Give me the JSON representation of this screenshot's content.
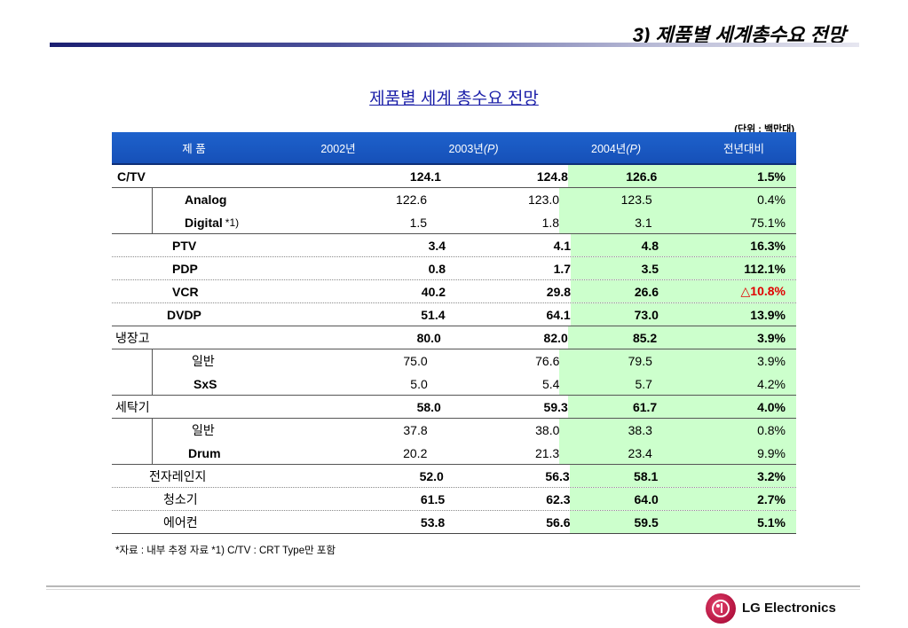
{
  "slide_title": "3) 제품별 세계총수요 전망",
  "table_title": "제품별 세계 총수요 전망",
  "unit": "(단위 : 백만대)",
  "headers": {
    "product": "제 품",
    "y2002": "2002년",
    "y2003": "2003년",
    "y2003_tag": "(P)",
    "y2004": "2004년",
    "y2004_tag": "(P)",
    "yoy": "전년대비"
  },
  "rows": [
    {
      "name": "C/TV",
      "v2002": "124.1",
      "v2003": "124.8",
      "v2004": "126.6",
      "yoy": "1.5%"
    },
    {
      "name": "Analog",
      "v2002": "122.6",
      "v2003": "123.0",
      "v2004": "123.5",
      "yoy": "0.4%"
    },
    {
      "name": "Digital",
      "note": "*1)",
      "v2002": "1.5",
      "v2003": "1.8",
      "v2004": "3.1",
      "yoy": "75.1%"
    },
    {
      "name": "PTV",
      "v2002": "3.4",
      "v2003": "4.1",
      "v2004": "4.8",
      "yoy": "16.3%"
    },
    {
      "name": "PDP",
      "v2002": "0.8",
      "v2003": "1.7",
      "v2004": "3.5",
      "yoy": "112.1%"
    },
    {
      "name": "VCR",
      "v2002": "40.2",
      "v2003": "29.8",
      "v2004": "26.6",
      "yoy": "△10.8%"
    },
    {
      "name": "DVDP",
      "v2002": "51.4",
      "v2003": "64.1",
      "v2004": "73.0",
      "yoy": "13.9%"
    },
    {
      "name": "냉장고",
      "v2002": "80.0",
      "v2003": "82.0",
      "v2004": "85.2",
      "yoy": "3.9%"
    },
    {
      "name": "일반",
      "v2002": "75.0",
      "v2003": "76.6",
      "v2004": "79.5",
      "yoy": "3.9%"
    },
    {
      "name": "SxS",
      "v2002": "5.0",
      "v2003": "5.4",
      "v2004": "5.7",
      "yoy": "4.2%"
    },
    {
      "name": "세탁기",
      "v2002": "58.0",
      "v2003": "59.3",
      "v2004": "61.7",
      "yoy": "4.0%"
    },
    {
      "name": "일반",
      "v2002": "37.8",
      "v2003": "38.0",
      "v2004": "38.3",
      "yoy": "0.8%"
    },
    {
      "name": "Drum",
      "v2002": "20.2",
      "v2003": "21.3",
      "v2004": "23.4",
      "yoy": "9.9%"
    },
    {
      "name": "전자레인지",
      "v2002": "52.0",
      "v2003": "56.3",
      "v2004": "58.1",
      "yoy": "3.2%"
    },
    {
      "name": "청소기",
      "v2002": "61.5",
      "v2003": "62.3",
      "v2004": "64.0",
      "yoy": "2.7%"
    },
    {
      "name": "에어컨",
      "v2002": "53.8",
      "v2003": "56.6",
      "v2004": "59.5",
      "yoy": "5.1%"
    }
  ],
  "footnote": "*자료 : 내부 추정 자료   *1) C/TV : CRT Type만 포함",
  "brand": "LG Electronics",
  "colors": {
    "header_bg": "#1650b8",
    "highlight_bg": "#ccffcc",
    "negative": "#e00000",
    "title": "#1b1fa8"
  }
}
